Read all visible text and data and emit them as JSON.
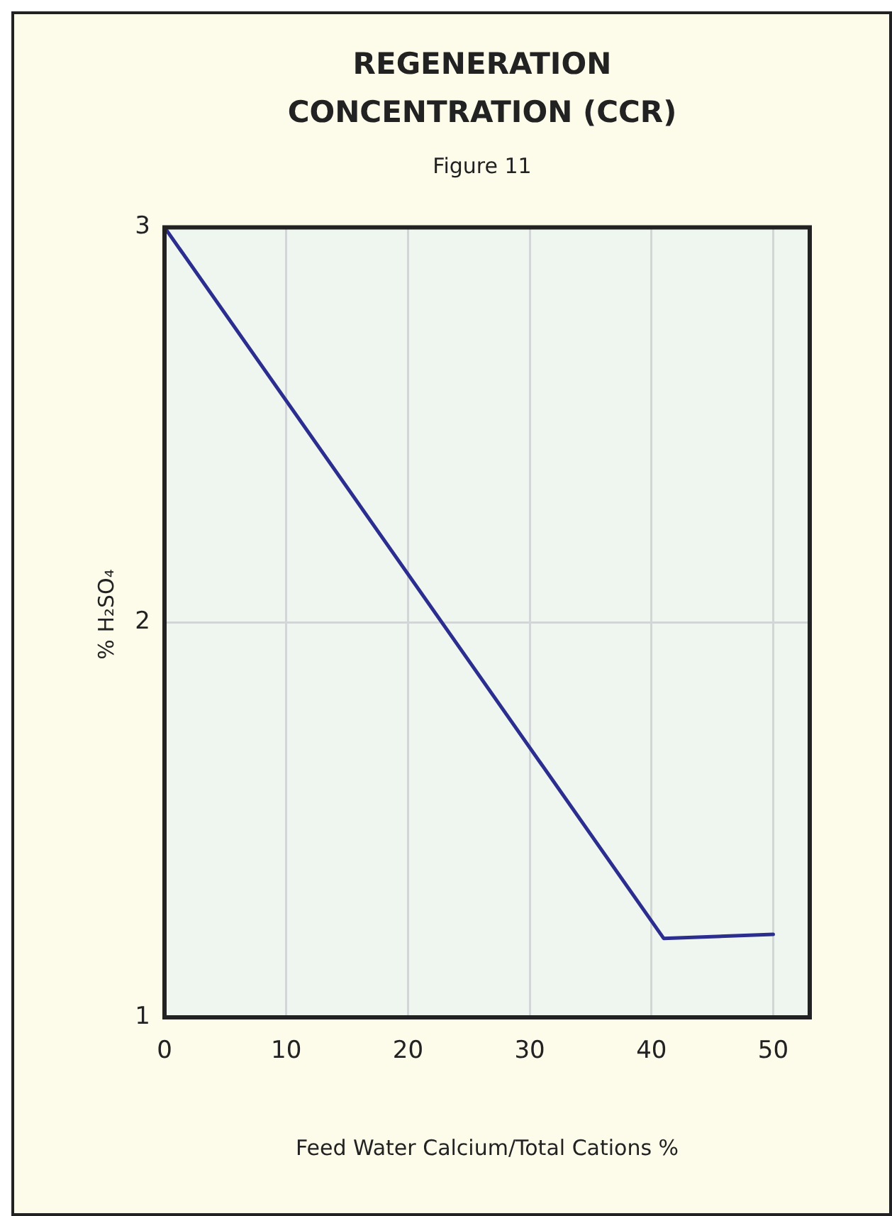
{
  "chart_data": {
    "type": "line",
    "title": "REGENERATION CONCENTRATION (CCR)",
    "subtitle": "Figure 11",
    "xlabel": "Feed Water Calcium/Total Cations %",
    "ylabel": "% H₂SO₄",
    "x": [
      0,
      41,
      50
    ],
    "series": [
      {
        "color": "#2b2e8f",
        "values": [
          3,
          1.2,
          1.21
        ]
      }
    ],
    "xlim": [
      0,
      53
    ],
    "xticks": [
      0,
      10,
      20,
      30,
      40,
      50
    ],
    "ylim": [
      1,
      3
    ],
    "yticks": [
      1,
      2,
      3
    ],
    "grid": true,
    "legend": false,
    "marker": "none",
    "line_style": "solid"
  }
}
